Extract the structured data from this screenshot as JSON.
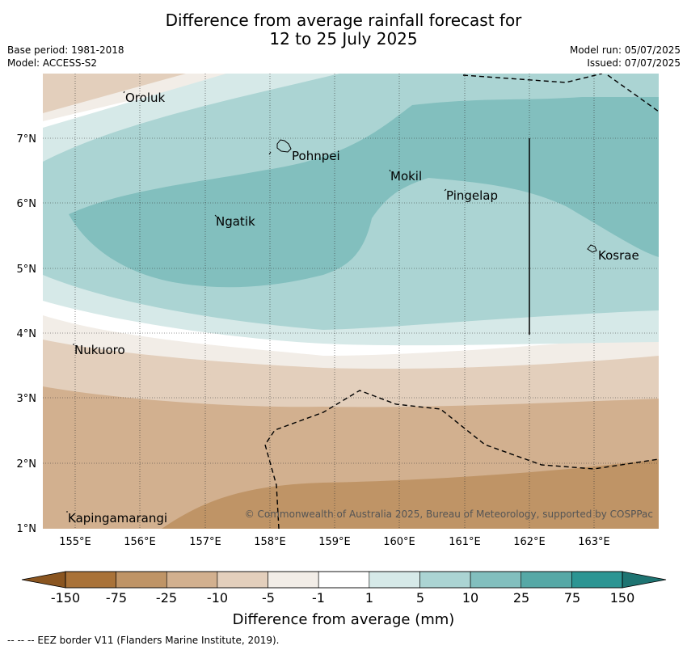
{
  "title_line1": "Difference from average rainfall forecast for",
  "title_line2": "12 to 25 July 2025",
  "base_period": "Base period: 1981-2018",
  "model": "Model: ACCESS-S2",
  "model_run": "Model run: 05/07/2025",
  "issued": "Issued: 07/07/2025",
  "copyright": "© Commonwealth of Australia 2025, Bureau of Meteorology, supported by COSPPac",
  "places": [
    "Oroluk",
    "Pohnpei",
    "Mokil",
    "Pingelap",
    "Ngatik",
    "Kosrae",
    "Nukuoro",
    "Kapingamarangi"
  ],
  "lon_labels": [
    "155°E",
    "156°E",
    "157°E",
    "158°E",
    "159°E",
    "160°E",
    "161°E",
    "162°E",
    "163°E"
  ],
  "lat_labels": [
    "7°N",
    "6°N",
    "5°N",
    "4°N",
    "3°N",
    "2°N",
    "1°N"
  ],
  "colorbar": {
    "ticks": [
      "-150",
      "-75",
      "-25",
      "-10",
      "-5",
      "-1",
      "1",
      "5",
      "10",
      "25",
      "75",
      "150"
    ],
    "colors": [
      "#a97238",
      "#bf9466",
      "#d2b08f",
      "#e3cfbc",
      "#f2ede7",
      "#ffffff",
      "#d6e9e8",
      "#abd4d3",
      "#82bfbe",
      "#56a8a6",
      "#2c9593"
    ],
    "end_low": "#8a5520",
    "end_high": "#1e7472",
    "label": "Difference from average (mm)"
  },
  "footer": "-- -- -- EEZ border V11 (Flanders Marine Institute, 2019)."
}
